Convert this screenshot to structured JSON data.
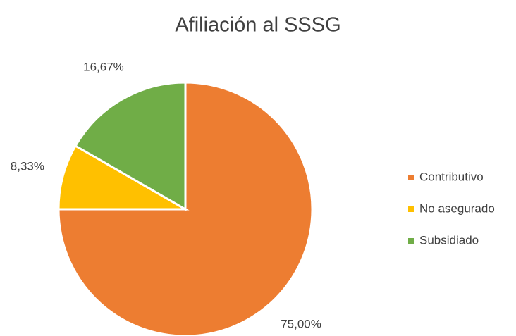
{
  "chart_data": {
    "type": "pie",
    "title": "Afiliación al SSSG",
    "categories": [
      "Contributivo",
      "No asegurado",
      "Subsidiado"
    ],
    "values": [
      75,
      8.33,
      16.67
    ],
    "value_labels": [
      "75,00%",
      "8,33%",
      "16,67%"
    ],
    "colors": [
      "#ED7D31",
      "#FFC000",
      "#70AD47"
    ],
    "legend": "right"
  }
}
